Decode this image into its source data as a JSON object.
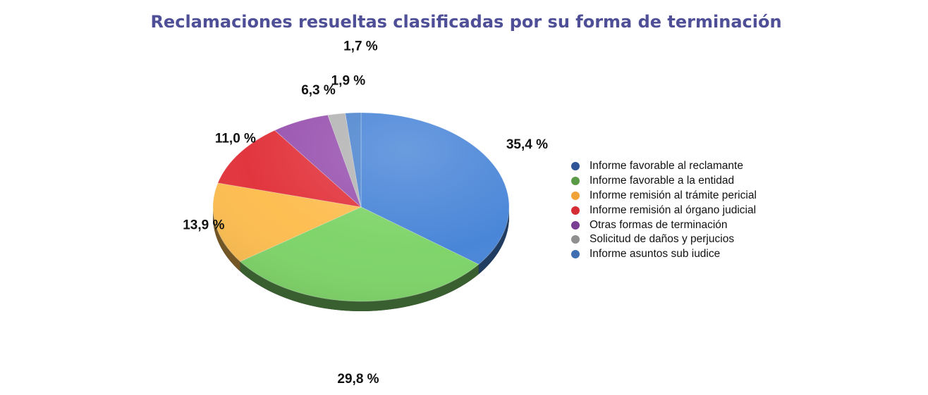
{
  "chart_data": {
    "type": "pie",
    "title": "Reclamaciones resueltas clasificadas por su forma de terminación",
    "categories": [
      "Informe favorable al reclamante",
      "Informe favorable a la entidad",
      "Informe remisión al trámite pericial",
      "Informe remisión al órgano judicial",
      "Otras formas de terminación",
      "Solicitud de daños y perjucios",
      "Informe asuntos sub iudice"
    ],
    "values": [
      35.4,
      29.8,
      13.9,
      11.0,
      6.3,
      1.9,
      1.7
    ],
    "value_labels": [
      "35,4 %",
      "29,8 %",
      "13,9 %",
      "11,0 %",
      "6,3 %",
      "1,9 %",
      "1,7 %"
    ],
    "colors": [
      "#4a86d8",
      "#7fd46a",
      "#fdbe52",
      "#e2363f",
      "#9a55b0",
      "#b5b5b5",
      "#4f86cf"
    ],
    "legend_colors": [
      "#2f5597",
      "#5b9b47",
      "#f1a33a",
      "#d42e34",
      "#7b3f91",
      "#8f8f8f",
      "#3f6fb0"
    ],
    "legend_placement": "right"
  }
}
